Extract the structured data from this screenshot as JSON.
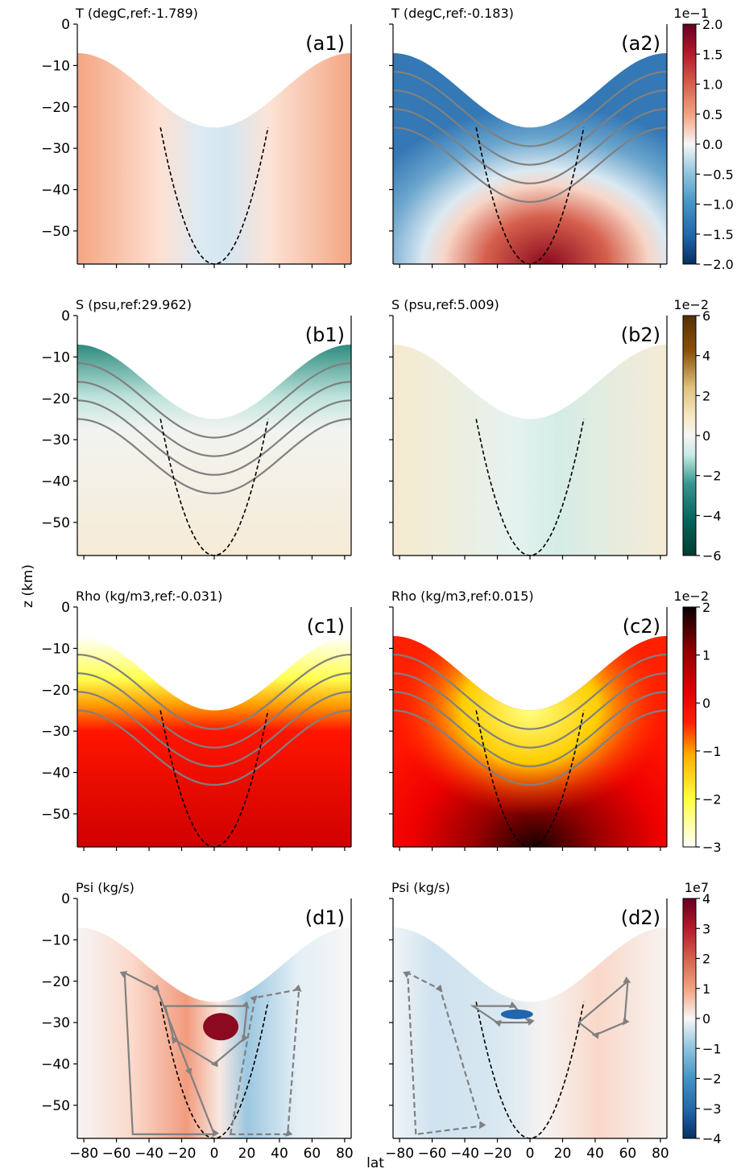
{
  "figure": {
    "ylabel": "z (km)",
    "xlabel": "lat",
    "xticks": [
      -80,
      -60,
      -40,
      -20,
      0,
      20,
      40,
      60,
      80
    ],
    "yticks": [
      0,
      -10,
      -20,
      -30,
      -40,
      -50
    ],
    "xlim": [
      -84,
      84
    ],
    "ylim": [
      -58,
      0
    ]
  },
  "chart_data": [
    {
      "type": "heatmap",
      "panel_label": "(a1)",
      "title": "T (degC,ref:-1.789)",
      "field": "T",
      "ref": -1.789,
      "colormap": "RdBu_r",
      "contour_color": "#808080"
    },
    {
      "type": "heatmap",
      "panel_label": "(a2)",
      "title": "T (degC,ref:-0.183)",
      "field": "T",
      "ref": -0.183,
      "colormap": "RdBu_r",
      "contour_color": "#808080",
      "colorbar": {
        "exponent": "1e−1",
        "ticks": [
          "2.0",
          "1.5",
          "1.0",
          "0.5",
          "0.0",
          "−0.5",
          "−1.0",
          "−1.5",
          "−2.0"
        ],
        "range": [
          -2.0,
          2.0
        ]
      }
    },
    {
      "type": "heatmap",
      "panel_label": "(b1)",
      "title": "S (psu,ref:29.962)",
      "field": "S",
      "ref": 29.962,
      "colormap": "BrBG",
      "contour_color": "#808080"
    },
    {
      "type": "heatmap",
      "panel_label": "(b2)",
      "title": "S (psu,ref:5.009)",
      "field": "S",
      "ref": 5.009,
      "colormap": "BrBG",
      "contour_color": "#808080",
      "colorbar": {
        "exponent": "1e−2",
        "ticks": [
          "6",
          "4",
          "2",
          "0",
          "−2",
          "−4",
          "−6"
        ],
        "range": [
          -6,
          6
        ]
      }
    },
    {
      "type": "heatmap",
      "panel_label": "(c1)",
      "title": "Rho (kg/m3,ref:-0.031)",
      "field": "Rho",
      "ref": -0.031,
      "colormap": "hot_r",
      "contour_color": "#808080"
    },
    {
      "type": "heatmap",
      "panel_label": "(c2)",
      "title": "Rho (kg/m3,ref:0.015)",
      "field": "Rho",
      "ref": 0.015,
      "colormap": "hot_r",
      "contour_color": "#808080",
      "colorbar": {
        "exponent": "1e−2",
        "ticks": [
          "2",
          "1",
          "0",
          "−1",
          "−2",
          "−3"
        ],
        "range": [
          -3,
          2
        ]
      }
    },
    {
      "type": "heatmap",
      "panel_label": "(d1)",
      "title": "Psi (kg/s)",
      "field": "Psi",
      "colormap": "RdBu_r",
      "contour_color": "#808080"
    },
    {
      "type": "heatmap",
      "panel_label": "(d2)",
      "title": "Psi (kg/s)",
      "field": "Psi",
      "colormap": "RdBu_r",
      "contour_color": "#808080",
      "colorbar": {
        "exponent": "1e7",
        "ticks": [
          "4",
          "3",
          "2",
          "1",
          "0",
          "−1",
          "−2",
          "−3",
          "−4"
        ],
        "range": [
          -4,
          4
        ]
      }
    }
  ],
  "geometry_note_free": true
}
